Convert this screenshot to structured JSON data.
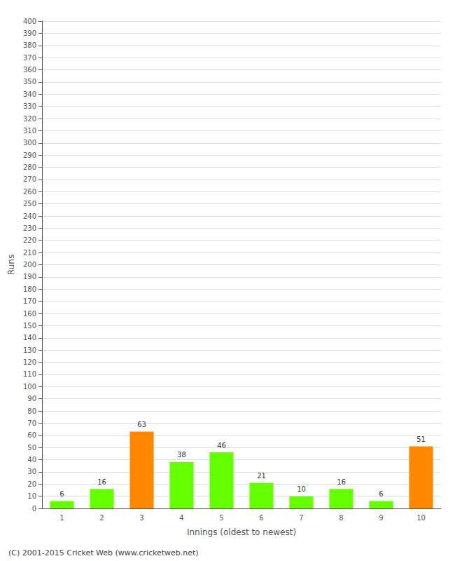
{
  "chart_data": {
    "type": "bar",
    "categories": [
      "1",
      "2",
      "3",
      "4",
      "5",
      "6",
      "7",
      "8",
      "9",
      "10"
    ],
    "values": [
      6,
      16,
      63,
      38,
      46,
      21,
      10,
      16,
      6,
      51
    ],
    "colors": [
      "#66ff00",
      "#66ff00",
      "#ff8800",
      "#66ff00",
      "#66ff00",
      "#66ff00",
      "#66ff00",
      "#66ff00",
      "#66ff00",
      "#ff8800"
    ],
    "xlabel": "Innings (oldest to newest)",
    "ylabel": "Runs",
    "ylim": [
      0,
      400
    ],
    "yticks": [
      0,
      10,
      20,
      30,
      40,
      50,
      60,
      70,
      80,
      90,
      100,
      110,
      120,
      130,
      140,
      150,
      160,
      170,
      180,
      190,
      200,
      210,
      220,
      230,
      240,
      250,
      260,
      270,
      280,
      290,
      300,
      310,
      320,
      330,
      340,
      350,
      360,
      370,
      380,
      390,
      400
    ],
    "grid": true,
    "data_labels": true,
    "annotations": [
      "(C) 2001-2015 Cricket Web (www.cricketweb.net)"
    ]
  }
}
